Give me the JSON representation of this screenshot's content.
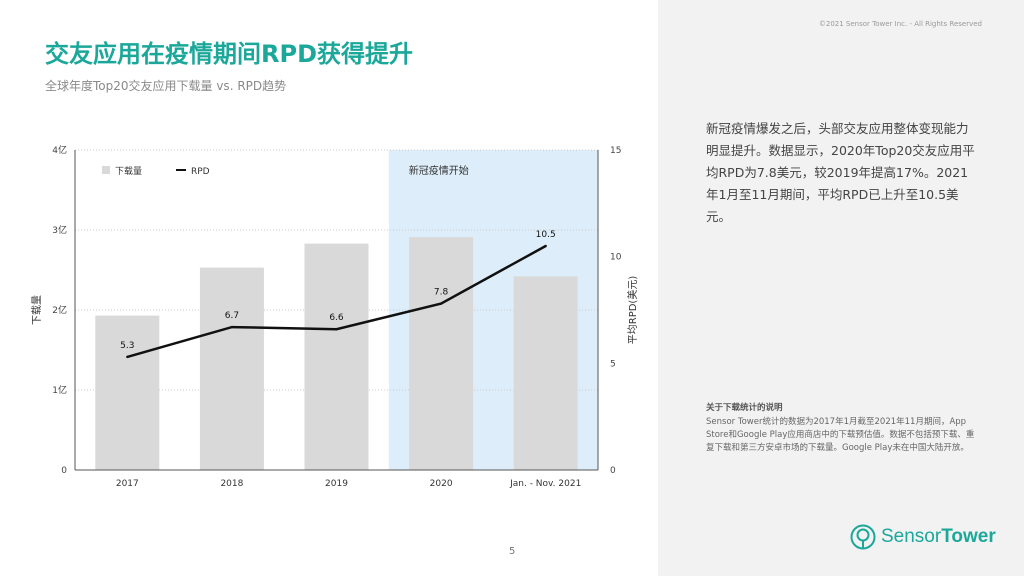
{
  "header": {
    "copyright": "©2021 Sensor Tower Inc. - All Rights Reserved",
    "title": "交友应用在疫情期间RPD获得提升",
    "subtitle": "全球年度Top20交友应用下载量 vs. RPD趋势"
  },
  "sidebar": {
    "summary": "新冠疫情爆发之后，头部交友应用整体变现能力明显提升。数据显示，2020年Top20交友应用平均RPD为7.8美元，较2019年提高17%。2021年1月至11月期间，平均RPD已上升至10.5美元。",
    "note_title": "关于下载统计的说明",
    "note_body": "Sensor Tower统计的数据为2017年1月截至2021年11月期间，App Store和Google Play应用商店中的下载预估值。数据不包括预下载、重复下载和第三方安卓市场的下载量。Google Play未在中国大陆开放。"
  },
  "footer": {
    "page_number": "5",
    "logo_word1": "Sensor",
    "logo_word2": "Tower"
  },
  "colors": {
    "accent": "#1ba89a",
    "bar": "#d9d9d9",
    "line": "#111111",
    "highlight": "#ddeefa"
  },
  "chart_data": {
    "type": "bar+line",
    "categories": [
      "2017",
      "2018",
      "2019",
      "2020",
      "Jan. - Nov. 2021"
    ],
    "series": [
      {
        "name": "下载量",
        "type": "bar",
        "axis": "left",
        "values": [
          1.93,
          2.53,
          2.83,
          2.91,
          2.42
        ]
      },
      {
        "name": "RPD",
        "type": "line",
        "axis": "right",
        "values": [
          5.3,
          6.7,
          6.6,
          7.8,
          10.5
        ]
      }
    ],
    "line_labels": [
      "5.3",
      "6.7",
      "6.6",
      "7.8",
      "10.5"
    ],
    "y_left": {
      "label": "下载量",
      "ticks": [
        "0",
        "1亿",
        "2亿",
        "3亿",
        "4亿"
      ],
      "min": 0,
      "max": 4
    },
    "y_right": {
      "label": "平均RPD(美元)",
      "ticks": [
        "0",
        "5",
        "10",
        "15"
      ],
      "min": 0,
      "max": 15
    },
    "highlight": {
      "from_category": 3,
      "to_category": 4,
      "label": "新冠疫情开始"
    },
    "legend_position": "top-left",
    "grid": true
  }
}
